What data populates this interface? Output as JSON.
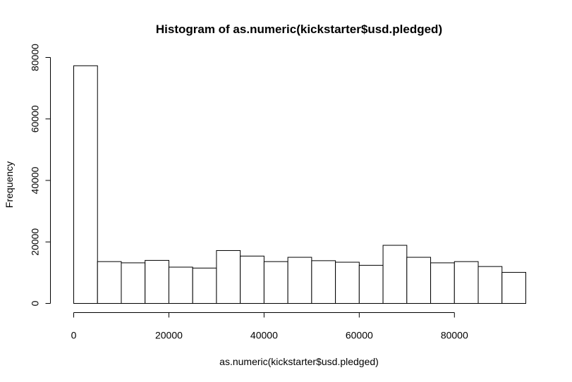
{
  "chart_data": {
    "type": "bar",
    "title": "Histogram of as.numeric(kickstarter$usd.pledged)",
    "xlabel": "as.numeric(kickstarter$usd.pledged)",
    "ylabel": "Frequency",
    "bin_width": 5000,
    "bins": [
      {
        "x0": 0,
        "x1": 5000,
        "count": 77300
      },
      {
        "x0": 5000,
        "x1": 10000,
        "count": 13600
      },
      {
        "x0": 10000,
        "x1": 15000,
        "count": 13200
      },
      {
        "x0": 15000,
        "x1": 20000,
        "count": 14000
      },
      {
        "x0": 20000,
        "x1": 25000,
        "count": 11800
      },
      {
        "x0": 25000,
        "x1": 30000,
        "count": 11500
      },
      {
        "x0": 30000,
        "x1": 35000,
        "count": 17200
      },
      {
        "x0": 35000,
        "x1": 40000,
        "count": 15400
      },
      {
        "x0": 40000,
        "x1": 45000,
        "count": 13600
      },
      {
        "x0": 45000,
        "x1": 50000,
        "count": 15000
      },
      {
        "x0": 50000,
        "x1": 55000,
        "count": 13900
      },
      {
        "x0": 55000,
        "x1": 60000,
        "count": 13400
      },
      {
        "x0": 60000,
        "x1": 65000,
        "count": 12400
      },
      {
        "x0": 65000,
        "x1": 70000,
        "count": 18900
      },
      {
        "x0": 70000,
        "x1": 75000,
        "count": 15000
      },
      {
        "x0": 75000,
        "x1": 80000,
        "count": 13200
      },
      {
        "x0": 80000,
        "x1": 85000,
        "count": 13600
      },
      {
        "x0": 85000,
        "x1": 90000,
        "count": 12000
      },
      {
        "x0": 90000,
        "x1": 95000,
        "count": 10100
      }
    ],
    "xlim": [
      0,
      95000
    ],
    "ylim": [
      0,
      80000
    ],
    "x_ticks": [
      0,
      20000,
      40000,
      60000,
      80000
    ],
    "x_tick_labels": [
      "0",
      "20000",
      "40000",
      "60000",
      "80000"
    ],
    "y_ticks": [
      0,
      20000,
      40000,
      60000,
      80000
    ],
    "y_tick_labels": [
      "0",
      "20000",
      "40000",
      "60000",
      "80000"
    ],
    "grid": false,
    "legend": "none",
    "bar_fill": "#ffffff",
    "bar_stroke": "#000000"
  }
}
